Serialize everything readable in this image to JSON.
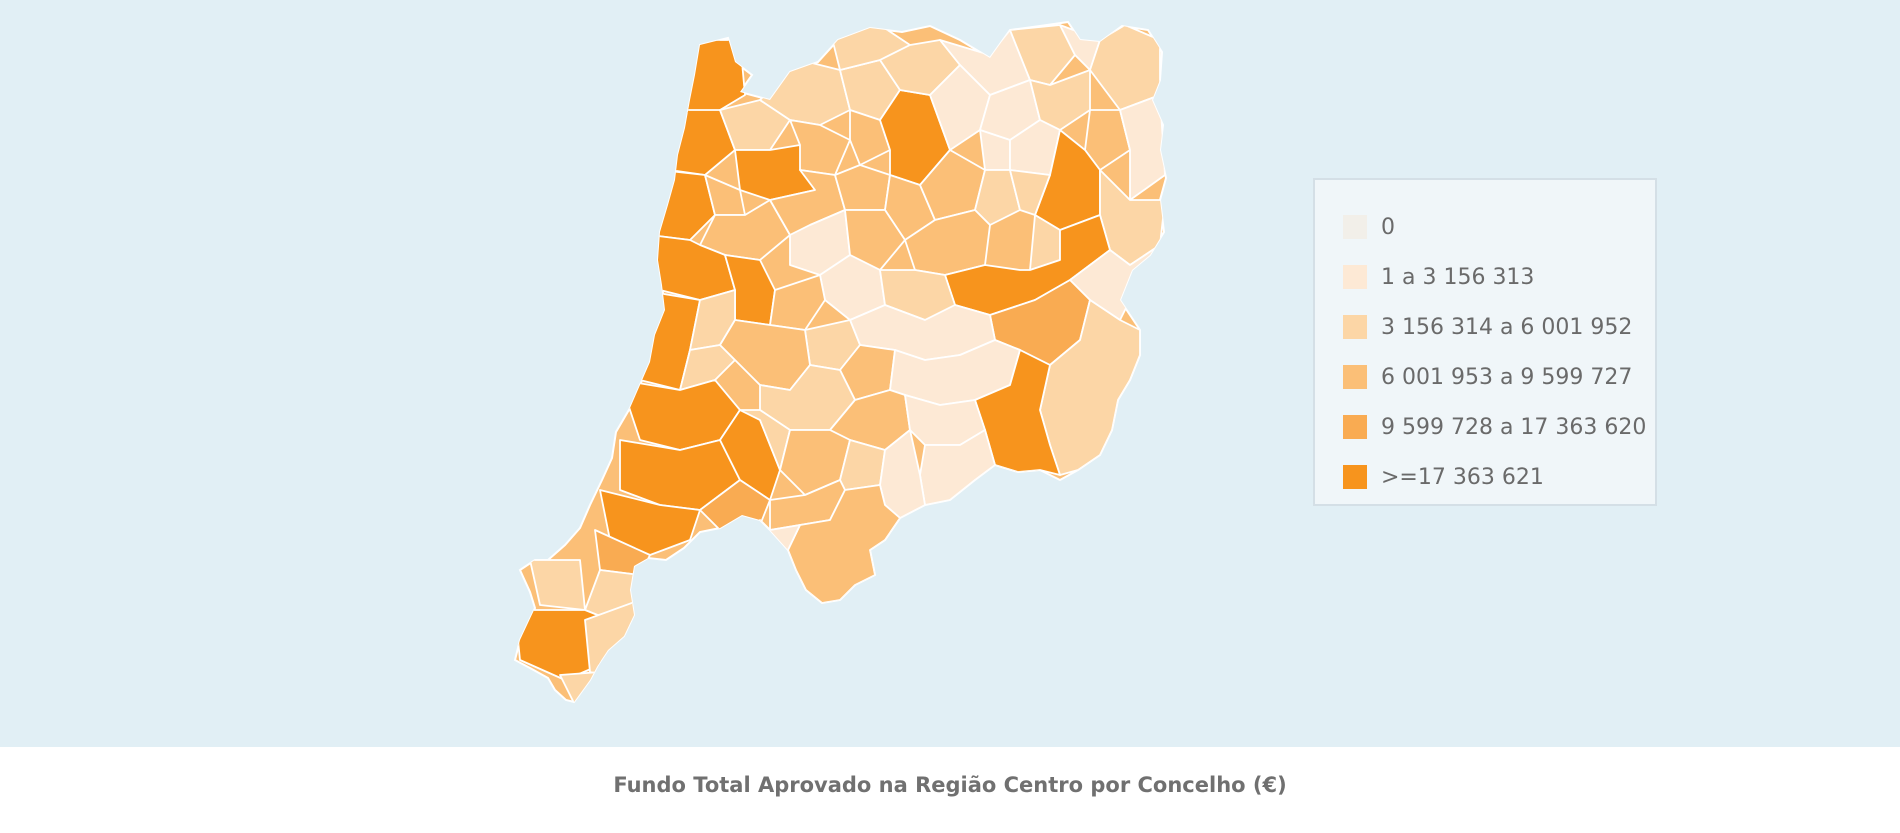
{
  "map": {
    "title": "Fundo Total Aprovado na Região Centro por Concelho (€)",
    "background_color": "#e1eff5",
    "border_color": "#ffffff",
    "legend": [
      {
        "label": "0",
        "color": "#f2efe9"
      },
      {
        "label": "1 a 3 156 313",
        "color": "#fde9d5"
      },
      {
        "label": "3 156 314 a 6 001 952",
        "color": "#fcd6a6"
      },
      {
        "label": "6 001 953 a 9 599 727",
        "color": "#fbbf77"
      },
      {
        "label": "9 599 728 a 17 363 620",
        "color": "#f9ab52"
      },
      {
        "label": ">=17 363 621",
        "color": "#f7941d"
      }
    ]
  }
}
